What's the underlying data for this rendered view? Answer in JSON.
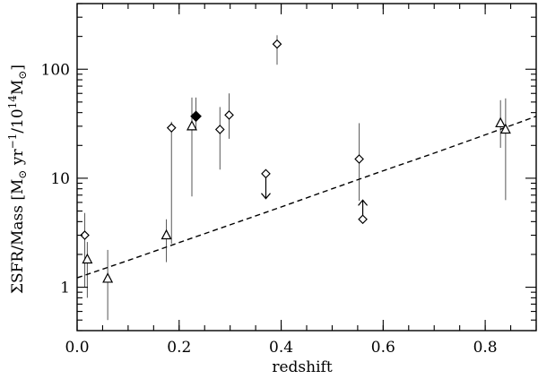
{
  "chart_data": {
    "type": "scatter",
    "title": "",
    "xlabel": "redshift",
    "ylabel": "ΣSFR/Mass [M⊙ yr⁻¹/10¹⁴M⊙]",
    "ylabel_parts": {
      "prefix": "ΣSFR/Mass [M",
      "sun1": "⊙",
      "yr": " yr",
      "exp1": "−1",
      "mid": "/10",
      "exp2": "14",
      "m2": "M",
      "sun2": "⊙",
      "suffix": "]"
    },
    "xlim": [
      0.0,
      0.9
    ],
    "ylim": [
      0.4,
      400
    ],
    "yscale": "log",
    "x_ticks": [
      {
        "value": 0.0,
        "label": "0.0"
      },
      {
        "value": 0.2,
        "label": "0.2"
      },
      {
        "value": 0.4,
        "label": "0.4"
      },
      {
        "value": 0.6,
        "label": "0.6"
      },
      {
        "value": 0.8,
        "label": "0.8"
      }
    ],
    "y_ticks": [
      {
        "value": 1,
        "label": "1"
      },
      {
        "value": 10,
        "label": "10"
      },
      {
        "value": 100,
        "label": "100"
      }
    ],
    "series": [
      {
        "marker": "diamond-open",
        "points": [
          {
            "x": 0.015,
            "y": 3.0,
            "ylo": 1.0,
            "yhi": 4.8
          },
          {
            "x": 0.185,
            "y": 29,
            "ylo": 2.5,
            "yhi": 33
          },
          {
            "x": 0.28,
            "y": 28,
            "ylo": 12,
            "yhi": 45
          },
          {
            "x": 0.298,
            "y": 38,
            "ylo": 23,
            "yhi": 60
          },
          {
            "x": 0.37,
            "y": 11,
            "ylo": 7.5,
            "yhi": 11,
            "limit": "upper",
            "limit_y": 6.5
          },
          {
            "x": 0.392,
            "y": 170,
            "ylo": 110,
            "yhi": 205
          },
          {
            "x": 0.553,
            "y": 15,
            "ylo": 6.2,
            "yhi": 32
          },
          {
            "x": 0.56,
            "y": 4.2,
            "ylo": 4.2,
            "yhi": 4.2,
            "limit": "lower",
            "limit_y": 6.3
          }
        ]
      },
      {
        "marker": "triangle-open",
        "points": [
          {
            "x": 0.02,
            "y": 1.8,
            "ylo": 0.8,
            "yhi": 2.6
          },
          {
            "x": 0.06,
            "y": 1.2,
            "ylo": 0.5,
            "yhi": 2.2
          },
          {
            "x": 0.175,
            "y": 3.0,
            "ylo": 1.7,
            "yhi": 4.2
          },
          {
            "x": 0.225,
            "y": 30,
            "ylo": 6.8,
            "yhi": 55
          },
          {
            "x": 0.83,
            "y": 32,
            "ylo": 19,
            "yhi": 52
          },
          {
            "x": 0.84,
            "y": 28,
            "ylo": 6.3,
            "yhi": 54
          }
        ]
      },
      {
        "marker": "diamond-filled",
        "points": [
          {
            "x": 0.233,
            "y": 37,
            "ylo": 28,
            "yhi": 55
          }
        ]
      }
    ],
    "fit_line": {
      "style": "dashed",
      "x": [
        0.0,
        0.1,
        0.2,
        0.3,
        0.4,
        0.5,
        0.6,
        0.7,
        0.8,
        0.9
      ],
      "y": [
        1.22,
        1.76,
        2.57,
        3.74,
        5.45,
        8.0,
        11.7,
        17.0,
        25.0,
        37.0
      ]
    }
  }
}
